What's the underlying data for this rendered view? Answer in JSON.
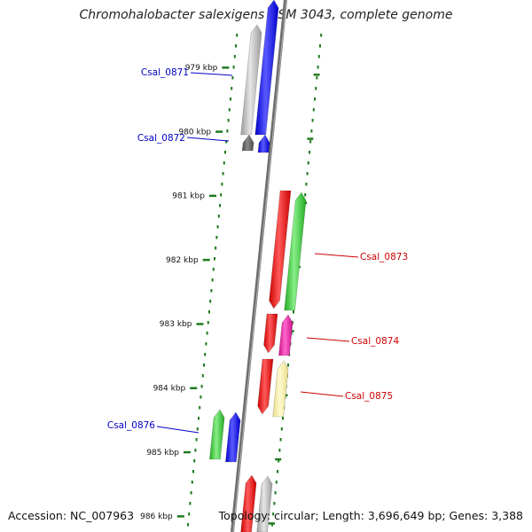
{
  "title": "Chromohalobacter salexigens DSM 3043, complete genome",
  "footer": {
    "accession": "Accession: NC_007963",
    "topology": "Topology: circular; Length: 3,696,649 bp; Genes: 3,388"
  },
  "colors": {
    "reverse_label": "#0000c8",
    "forward_label": "#cc0000",
    "ticks": "#1e7a1e",
    "backbone": "#7a7a7a"
  },
  "ticks": [
    {
      "kbp": 979,
      "label": "979 kbp"
    },
    {
      "kbp": 980,
      "label": "980 kbp"
    },
    {
      "kbp": 981,
      "label": "981 kbp"
    },
    {
      "kbp": 982,
      "label": "982 kbp"
    },
    {
      "kbp": 983,
      "label": "983 kbp"
    },
    {
      "kbp": 984,
      "label": "984 kbp"
    },
    {
      "kbp": 985,
      "label": "985 kbp"
    },
    {
      "kbp": 986,
      "label": "986 kbp"
    }
  ],
  "gene_labels": [
    {
      "id": "Csal_0871",
      "strand": "reverse"
    },
    {
      "id": "Csal_0872",
      "strand": "reverse"
    },
    {
      "id": "Csal_0873",
      "strand": "forward"
    },
    {
      "id": "Csal_0874",
      "strand": "forward"
    },
    {
      "id": "Csal_0875",
      "strand": "forward"
    },
    {
      "id": "Csal_0876",
      "strand": "reverse"
    }
  ]
}
